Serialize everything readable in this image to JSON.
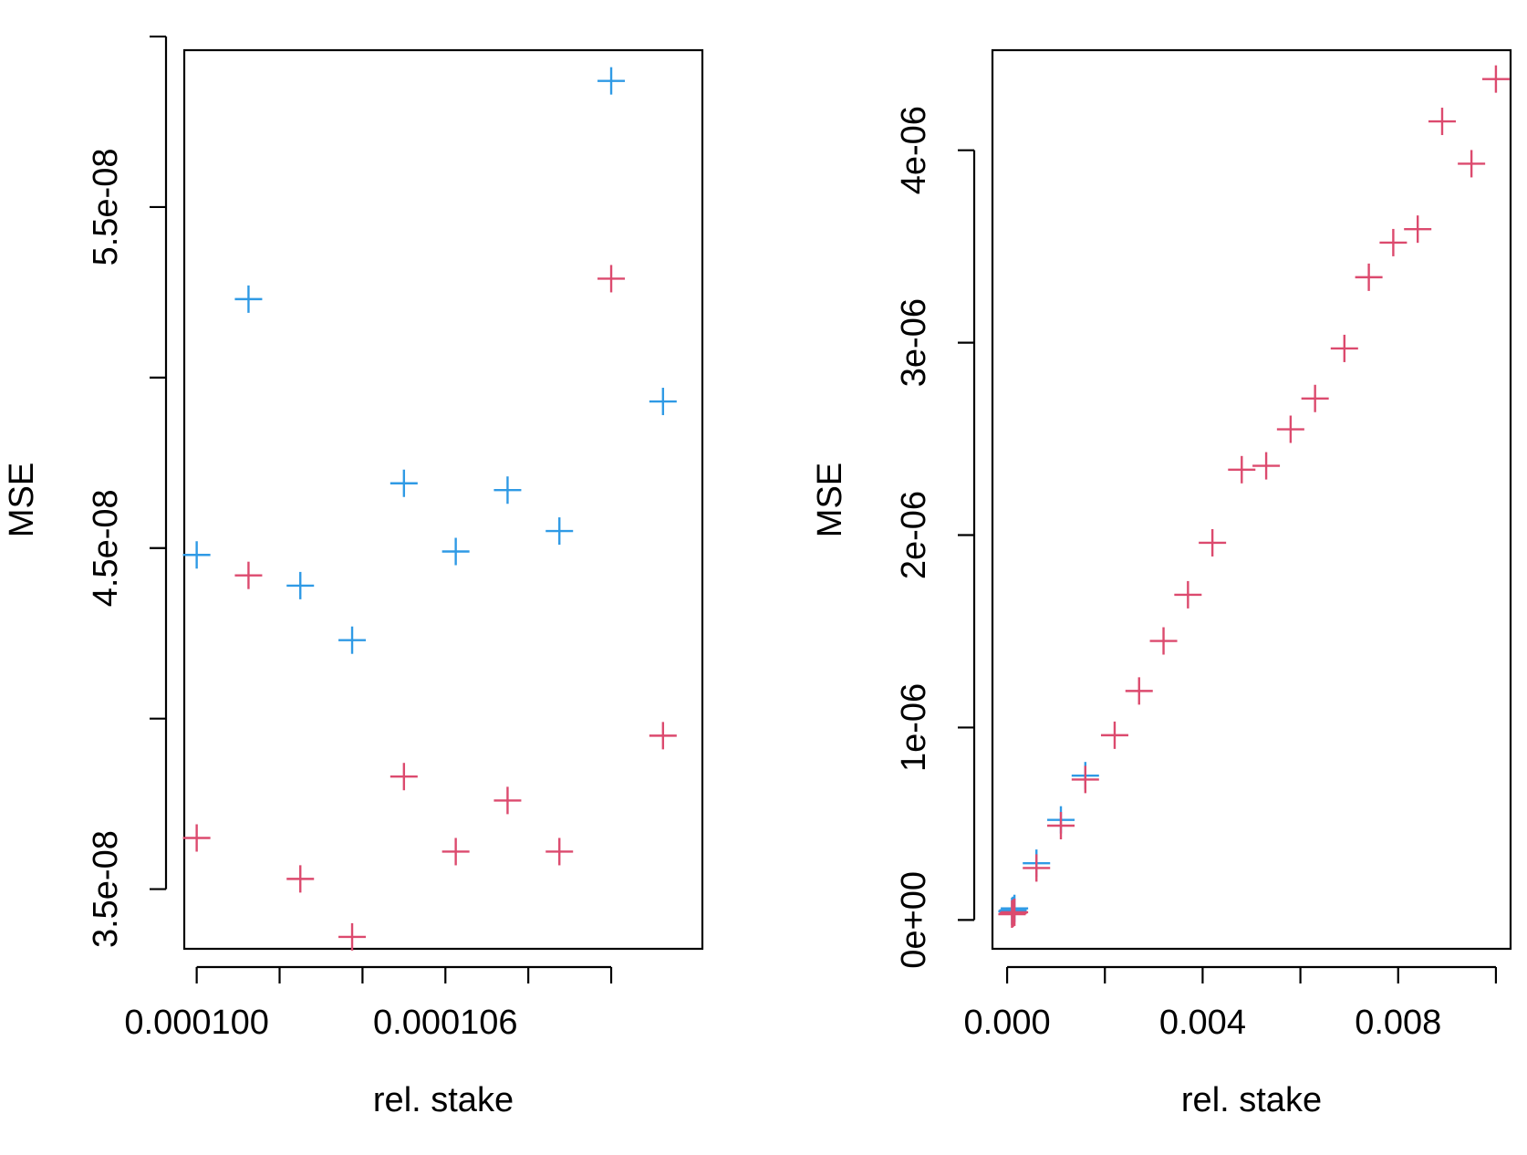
{
  "chart_data": [
    {
      "type": "scatter",
      "title": "",
      "xlabel": "rel. stake",
      "ylabel": "MSE",
      "xlim": [
        9.97e-05,
        0.0001122
      ],
      "ylim": [
        3.325e-08,
        5.96e-08
      ],
      "xticks": [
        0.0001,
        0.000102,
        0.000104,
        0.000106,
        0.000108,
        0.00011
      ],
      "xtick_labels": [
        "0.000100",
        "",
        "",
        "0.000106",
        "",
        ""
      ],
      "yticks": [
        3.5e-08,
        4e-08,
        4.5e-08,
        5e-08,
        5.5e-08,
        6e-08
      ],
      "ytick_labels": [
        "3.5e-08",
        "",
        "4.5e-08",
        "",
        "5.5e-08",
        ""
      ],
      "grid": false,
      "marker": "plus",
      "series": [
        {
          "color": "#2f9ae5",
          "x": [
            0.0001,
            0.00010125,
            0.0001025,
            0.00010375,
            0.000105,
            0.00010625,
            0.0001075,
            0.00010875,
            0.00011,
            0.00011125
          ],
          "y": [
            4.48e-08,
            5.23e-08,
            4.39e-08,
            4.23e-08,
            4.69e-08,
            4.49e-08,
            4.67e-08,
            4.55e-08,
            5.87e-08,
            4.93e-08
          ]
        },
        {
          "color": "#dc4a6e",
          "x": [
            0.0001,
            0.00010125,
            0.0001025,
            0.00010375,
            0.000105,
            0.00010625,
            0.0001075,
            0.00010875,
            0.00011,
            0.00011125
          ],
          "y": [
            3.65e-08,
            4.42e-08,
            3.53e-08,
            3.36e-08,
            3.83e-08,
            3.61e-08,
            3.76e-08,
            3.61e-08,
            5.29e-08,
            3.95e-08
          ]
        }
      ]
    },
    {
      "type": "scatter",
      "title": "",
      "xlabel": "rel. stake",
      "ylabel": "MSE",
      "xlim": [
        -0.0003,
        0.0103
      ],
      "ylim": [
        -1.5e-07,
        4.52e-06
      ],
      "xticks": [
        0,
        0.002,
        0.004,
        0.006,
        0.008,
        0.01
      ],
      "xtick_labels": [
        "0.000",
        "",
        "0.004",
        "",
        "0.008",
        ""
      ],
      "yticks": [
        0,
        1e-06,
        2e-06,
        3e-06,
        4e-06
      ],
      "ytick_labels": [
        "0e+00",
        "1e-06",
        "2e-06",
        "3e-06",
        "4e-06"
      ],
      "grid": false,
      "marker": "plus",
      "series": [
        {
          "color": "#2f9ae5",
          "x": [
            0.0001,
            0.00012,
            0.00015,
            0.0006,
            0.0011,
            0.0016
          ],
          "y": [
            4.5e-08,
            5e-08,
            6e-08,
            2.95e-07,
            5.2e-07,
            7.5e-07
          ]
        },
        {
          "color": "#dc4a6e",
          "x": [
            0.0001,
            0.00012,
            0.00015,
            0.0006,
            0.0011,
            0.0016,
            0.0022,
            0.0027,
            0.0032,
            0.0037,
            0.0042,
            0.0048,
            0.0053,
            0.0058,
            0.0063,
            0.0069,
            0.0074,
            0.0079,
            0.0084,
            0.0089,
            0.0095,
            0.01
          ],
          "y": [
            3e-08,
            3.5e-08,
            4e-08,
            2.7e-07,
            4.9e-07,
            7.3e-07,
            9.6e-07,
            1.19e-06,
            1.45e-06,
            1.69e-06,
            1.96e-06,
            2.34e-06,
            2.36e-06,
            2.55e-06,
            2.71e-06,
            2.97e-06,
            3.34e-06,
            3.52e-06,
            3.59e-06,
            4.15e-06,
            3.93e-06,
            4.37e-06
          ]
        }
      ]
    }
  ]
}
